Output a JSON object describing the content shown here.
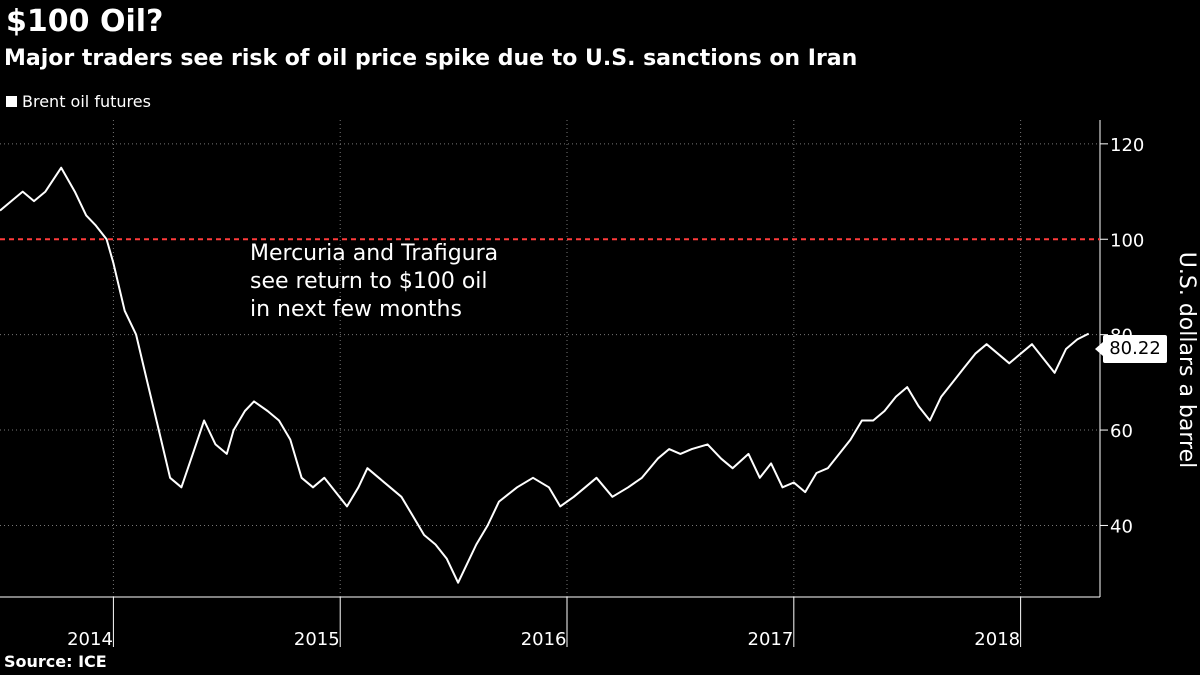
{
  "header": {
    "title": "$100 Oil?",
    "subtitle": "Major traders see risk of oil price spike due to U.S. sanctions on Iran"
  },
  "legend": {
    "label": "Brent oil futures"
  },
  "source": "Source: ICE",
  "annotation": {
    "lines": [
      "Mercuria and Trafigura",
      "see return to $100 oil",
      "in next few months"
    ]
  },
  "last_value_label": "80.22",
  "chart_data": {
    "type": "line",
    "title": "$100 Oil?",
    "subtitle": "Major traders see risk of oil price spike due to U.S. sanctions on Iran",
    "ylabel": "U.S. dollars a barrel",
    "ylim": [
      25,
      125
    ],
    "yticks": [
      40,
      60,
      80,
      100,
      120
    ],
    "xlim": [
      2014.0,
      2018.85
    ],
    "x_tick_labels": [
      "2014",
      "2015",
      "2016",
      "2017",
      "2018"
    ],
    "grid": true,
    "legend_position": "top-left",
    "reference_line": {
      "value": 100,
      "color": "#ff3b3b",
      "style": "dashed"
    },
    "series": [
      {
        "name": "Brent oil futures",
        "color": "#ffffff",
        "x": [
          2014.0,
          2014.05,
          2014.1,
          2014.15,
          2014.2,
          2014.27,
          2014.33,
          2014.38,
          2014.42,
          2014.47,
          2014.5,
          2014.55,
          2014.6,
          2014.65,
          2014.7,
          2014.75,
          2014.8,
          2014.85,
          2014.9,
          2014.95,
          2015.0,
          2015.03,
          2015.08,
          2015.12,
          2015.18,
          2015.23,
          2015.28,
          2015.33,
          2015.38,
          2015.43,
          2015.48,
          2015.53,
          2015.58,
          2015.62,
          2015.67,
          2015.72,
          2015.77,
          2015.82,
          2015.87,
          2015.92,
          2015.97,
          2016.02,
          2016.05,
          2016.1,
          2016.15,
          2016.2,
          2016.28,
          2016.35,
          2016.42,
          2016.47,
          2016.53,
          2016.58,
          2016.63,
          2016.7,
          2016.77,
          2016.83,
          2016.9,
          2016.95,
          2017.0,
          2017.05,
          2017.12,
          2017.18,
          2017.23,
          2017.3,
          2017.35,
          2017.4,
          2017.45,
          2017.5,
          2017.55,
          2017.6,
          2017.65,
          2017.7,
          2017.75,
          2017.8,
          2017.85,
          2017.9,
          2017.95,
          2018.0,
          2018.05,
          2018.1,
          2018.15,
          2018.2,
          2018.25,
          2018.3,
          2018.35,
          2018.4,
          2018.45,
          2018.5,
          2018.55,
          2018.6,
          2018.65,
          2018.7,
          2018.75,
          2018.8
        ],
        "values": [
          106,
          108,
          110,
          108,
          110,
          115,
          110,
          105,
          103,
          100,
          95,
          85,
          80,
          70,
          60,
          50,
          48,
          55,
          62,
          57,
          55,
          60,
          64,
          66,
          64,
          62,
          58,
          50,
          48,
          50,
          47,
          44,
          48,
          52,
          50,
          48,
          46,
          42,
          38,
          36,
          33,
          28,
          31,
          36,
          40,
          45,
          48,
          50,
          48,
          44,
          46,
          48,
          50,
          46,
          48,
          50,
          54,
          56,
          55,
          56,
          57,
          54,
          52,
          55,
          50,
          53,
          48,
          49,
          47,
          51,
          52,
          55,
          58,
          62,
          62,
          64,
          67,
          69,
          65,
          62,
          67,
          70,
          73,
          76,
          78,
          76,
          74,
          76,
          78,
          75,
          72,
          77,
          79,
          80.22
        ]
      }
    ]
  }
}
